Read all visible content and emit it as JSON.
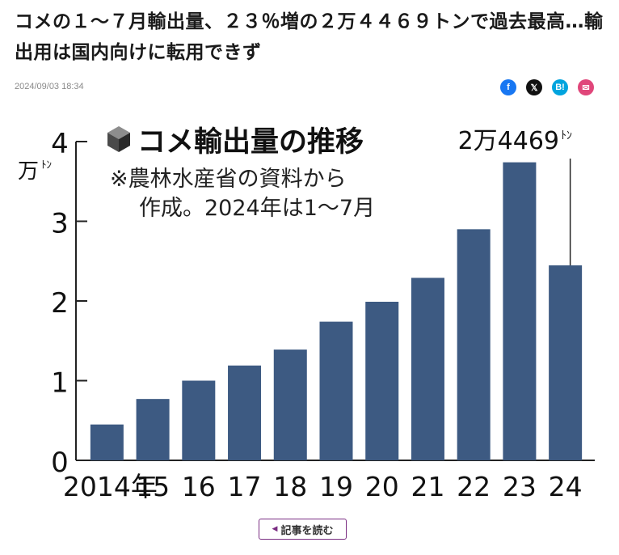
{
  "article": {
    "headline": "コメの１～７月輸出量、２３％増の２万４４６９トンで過去最高…輸出用は国内向けに転用できず",
    "date": "2024/09/03 18:34"
  },
  "share": [
    {
      "name": "facebook-share-icon",
      "glyph": "f",
      "color": "#1877f2"
    },
    {
      "name": "x-share-icon",
      "glyph": "𝕏",
      "color": "#111111"
    },
    {
      "name": "hatena-bookmark-share-icon",
      "glyph": "B!",
      "color": "#00a4de"
    },
    {
      "name": "mail-share-icon",
      "glyph": "✉",
      "color": "#e0467a"
    }
  ],
  "chart_data": {
    "type": "bar",
    "title": "コメ輸出量の推移",
    "note_lines": [
      "※農林水産省の資料から",
      "作成。2024年は1～7月"
    ],
    "unit_label": "万",
    "unit_suffix": "ﾄﾝ",
    "callout": {
      "text": "2万4469",
      "suffix": "ﾄﾝ",
      "category": "24"
    },
    "categories": [
      "2014年",
      "15",
      "16",
      "17",
      "18",
      "19",
      "20",
      "21",
      "22",
      "23",
      "24"
    ],
    "values": [
      0.45,
      0.77,
      1.0,
      1.19,
      1.39,
      1.74,
      1.99,
      2.29,
      2.9,
      3.74,
      2.4469
    ],
    "yticks": [
      0,
      1,
      2,
      3,
      4
    ],
    "ylim": [
      0,
      4
    ],
    "bar_color": "#3d5a82",
    "grid": false
  },
  "read_more": {
    "label": "記事を読む"
  }
}
